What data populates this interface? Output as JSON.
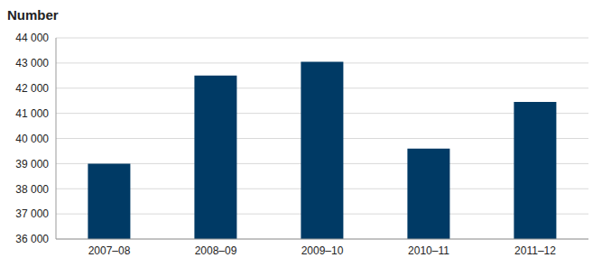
{
  "chart_data": {
    "type": "bar",
    "y_label": "Number",
    "categories": [
      "2007–08",
      "2008–09",
      "2009–10",
      "2010–11",
      "2011–12"
    ],
    "values": [
      39000,
      42500,
      43050,
      39600,
      41450
    ],
    "color": "#003a65",
    "ylim": [
      36000,
      44000
    ],
    "yticks": [
      {
        "value": 36000,
        "label": "36 000"
      },
      {
        "value": 37000,
        "label": "37 000"
      },
      {
        "value": 38000,
        "label": "38 000"
      },
      {
        "value": 39000,
        "label": "39 000"
      },
      {
        "value": 40000,
        "label": "40 000"
      },
      {
        "value": 41000,
        "label": "41 000"
      },
      {
        "value": 42000,
        "label": "42 000"
      },
      {
        "value": 43000,
        "label": "43 000"
      },
      {
        "value": 44000,
        "label": "44 000"
      }
    ],
    "grid": true
  }
}
